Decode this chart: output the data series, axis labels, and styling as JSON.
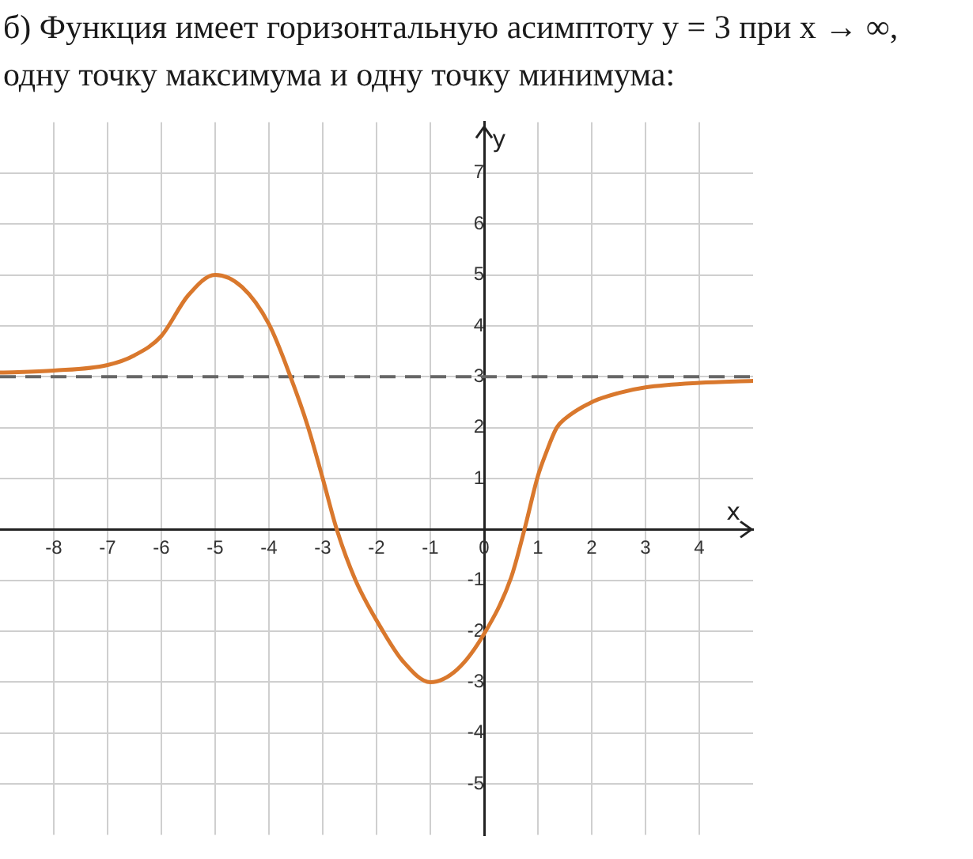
{
  "chart_data": {
    "type": "line",
    "title": "б) Функция имеет горизонтальную асимптоту y = 3 при x → ∞, одну точку максимума и одну точку минимума:",
    "xlabel": "x",
    "ylabel": "y",
    "xlim": [
      -9,
      5
    ],
    "ylim": [
      -6,
      8
    ],
    "xticks": [
      -8,
      -7,
      -6,
      -5,
      -4,
      -3,
      -2,
      -1,
      0,
      1,
      2,
      3,
      4
    ],
    "yticks": [
      -5,
      -4,
      -3,
      -2,
      -1,
      1,
      2,
      3,
      4,
      5,
      6,
      7
    ],
    "grid": true,
    "series": [
      {
        "color": "#d9782d",
        "x": [
          -9,
          -8,
          -7,
          -6.5,
          -6,
          -5.5,
          -5,
          -4.5,
          -4,
          -3.6,
          -3.27,
          -3,
          -2.74,
          -2.39,
          -1.88,
          -1.5,
          -1,
          -0.5,
          0,
          0.5,
          0.75,
          1,
          1.15,
          1.35,
          1.5,
          2,
          2.5,
          3,
          4,
          5
        ],
        "values": [
          3.08,
          3.12,
          3.23,
          3.42,
          3.8,
          4.6,
          5,
          4.76,
          4.03,
          3,
          2,
          1,
          0,
          -1,
          -2,
          -2.6,
          -3,
          -2.75,
          -2.05,
          -0.95,
          0,
          1.05,
          1.5,
          2,
          2.17,
          2.5,
          2.68,
          2.79,
          2.88,
          2.92
        ]
      }
    ],
    "ref_lines": [
      {
        "axis": "y",
        "value": 3,
        "color": "#666666",
        "line_style": "dashed"
      }
    ]
  }
}
